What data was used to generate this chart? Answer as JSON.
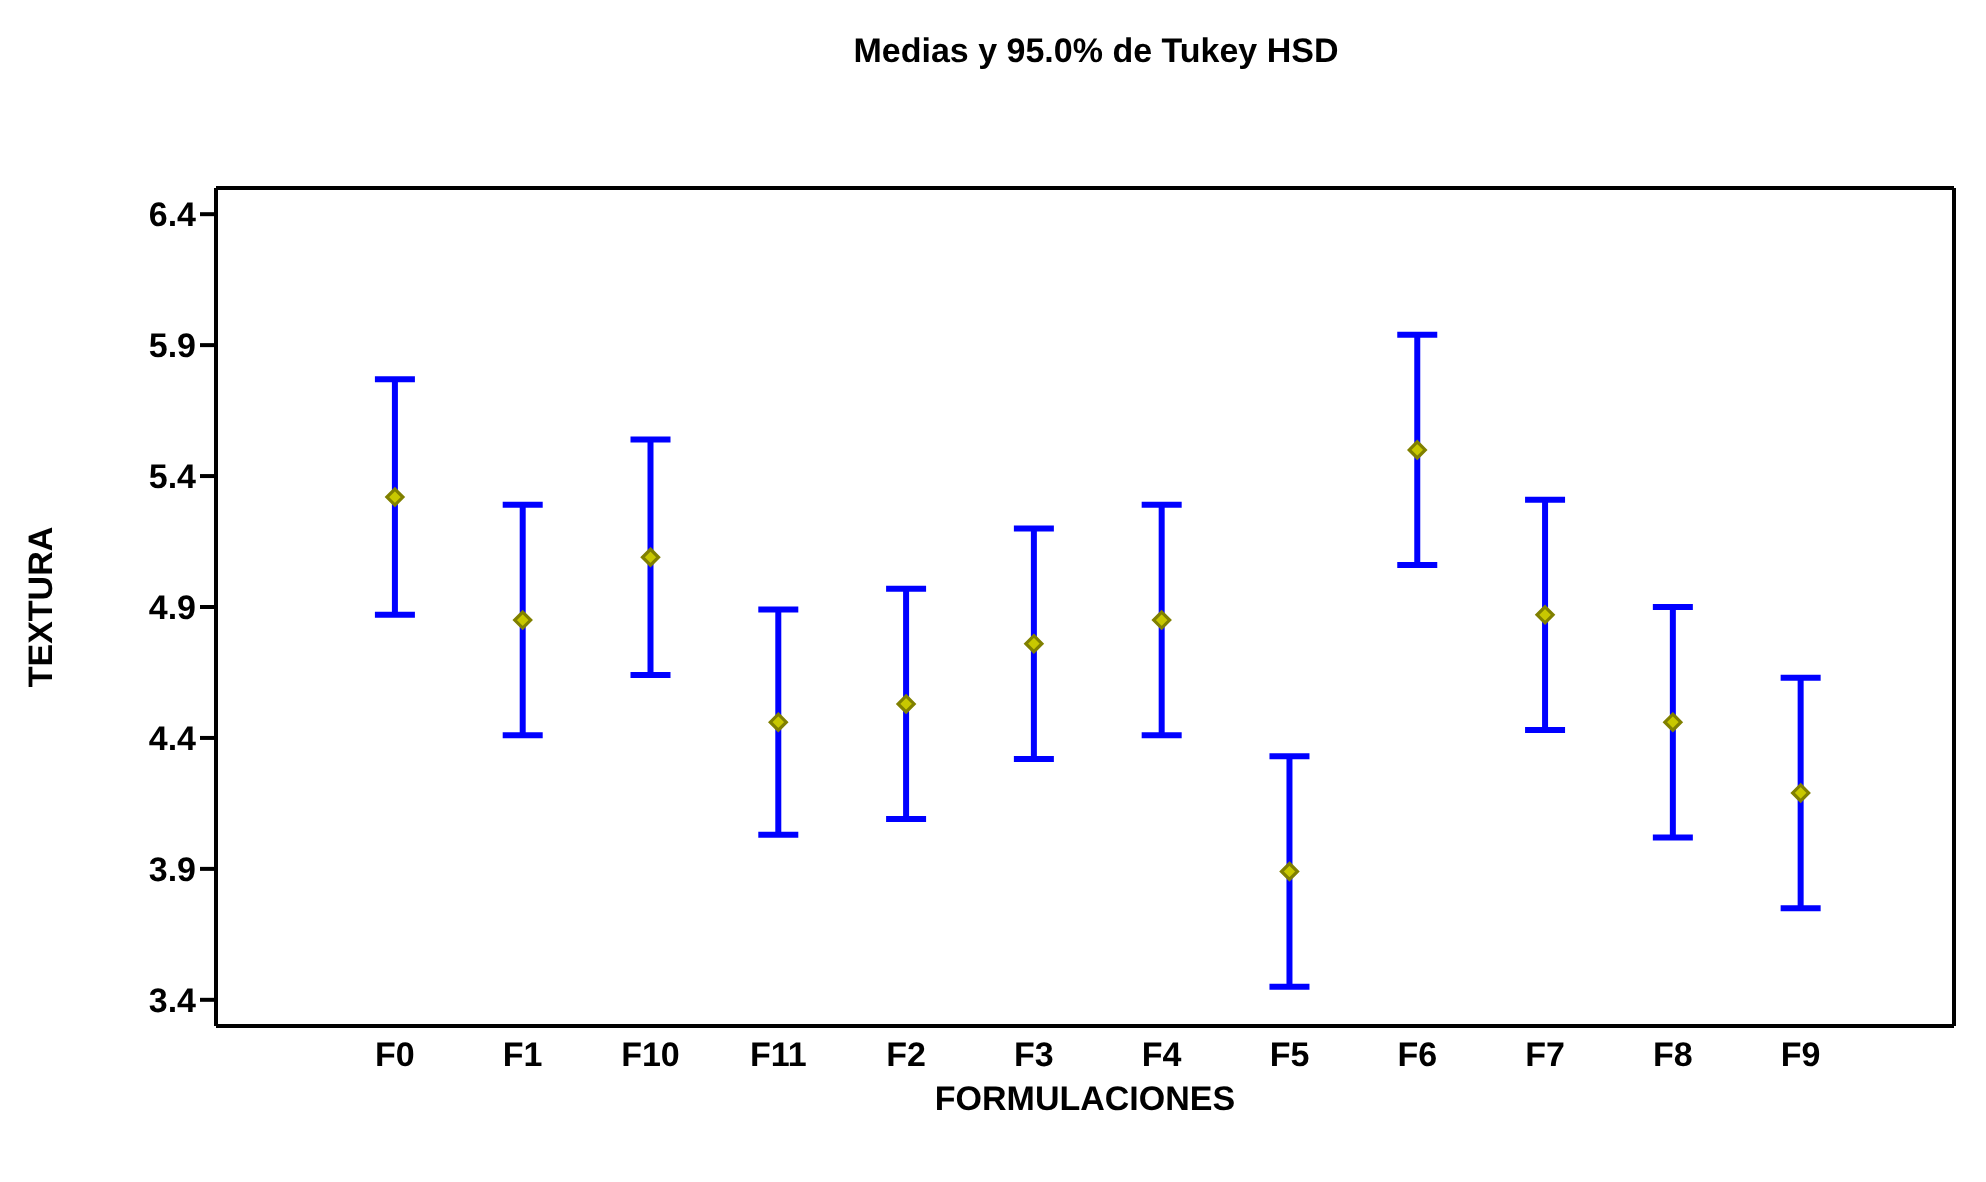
{
  "chart_data": {
    "type": "scatter",
    "title": "Medias y 95.0% de Tukey HSD",
    "xlabel": "FORMULACIONES",
    "ylabel": "TEXTURA",
    "categories": [
      "F0",
      "F1",
      "F10",
      "F11",
      "F2",
      "F3",
      "F4",
      "F5",
      "F6",
      "F7",
      "F8",
      "F9"
    ],
    "series": [
      {
        "color": "#808000",
        "values": [
          5.32,
          4.85,
          5.09,
          4.46,
          4.53,
          4.76,
          4.85,
          3.89,
          5.5,
          4.87,
          4.46,
          4.19
        ],
        "errors": [
          0.45,
          0.44,
          0.45,
          0.43,
          0.44,
          0.44,
          0.44,
          0.44,
          0.44,
          0.44,
          0.44,
          0.44
        ]
      }
    ],
    "ylim": [
      3.3,
      6.5
    ],
    "yticks": [
      3.4,
      3.9,
      4.4,
      4.9,
      5.4,
      5.9,
      6.4
    ],
    "marker": "diamond"
  }
}
